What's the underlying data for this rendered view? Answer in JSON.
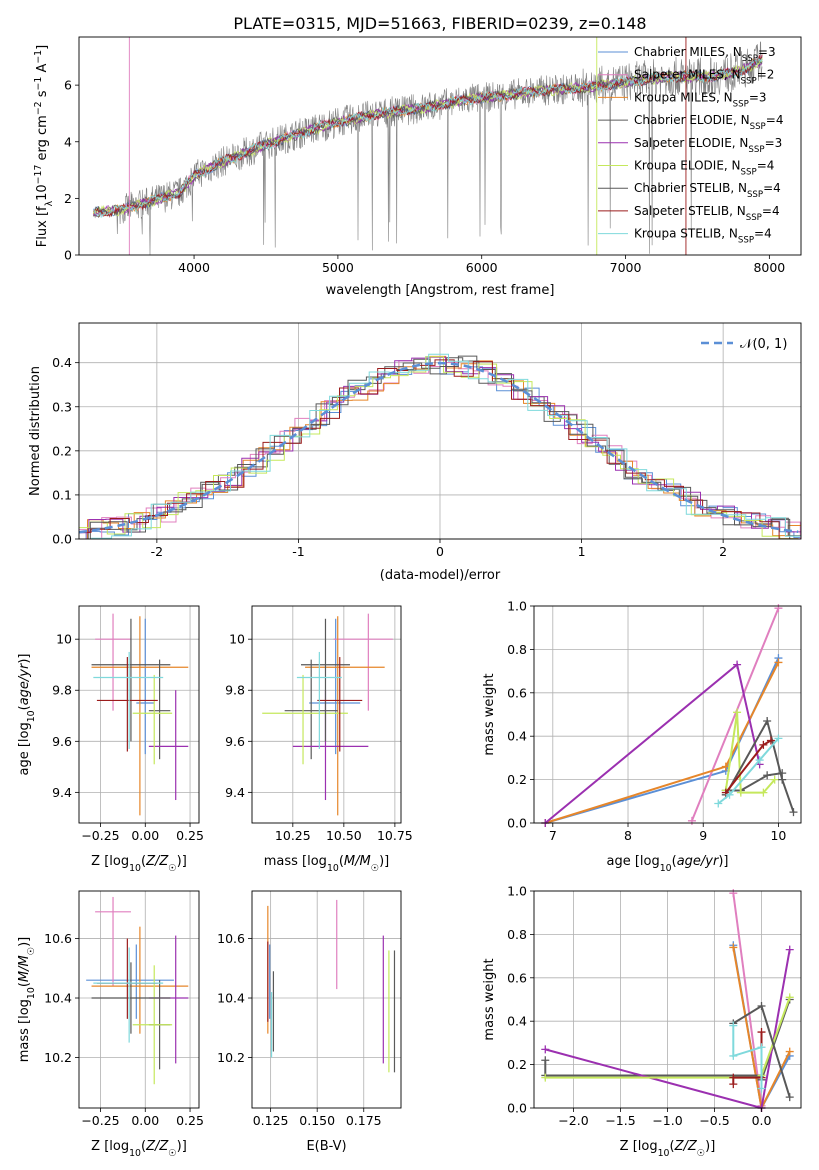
{
  "title": "PLATE=0315, MJD=51663, FIBERID=0239, z=0.148",
  "colors": {
    "Chabrier MILES": "#5b8fd6",
    "Salpeter MILES": "#e07fbf",
    "Kroupa MILES": "#e6862a",
    "Chabrier ELODIE": "#5a5a5a",
    "Salpeter ELODIE": "#9b30b0",
    "Kroupa ELODIE": "#c5e85c",
    "Chabrier STELIB": "#585858",
    "Salpeter STELIB": "#9b1c1c",
    "Kroupa STELIB": "#7fd9dc",
    "spectrum": "#808080",
    "grid": "#b0b0b0"
  },
  "chart_data": [
    {
      "id": "spectrum",
      "type": "line",
      "xlabel": "wavelength [Angstrom, rest frame]",
      "ylabel": "Flux [f_λ10^-17 erg cm^-2 s^-1 A^-1]",
      "xlim": [
        3200,
        8220
      ],
      "ylim": [
        0,
        7.7
      ],
      "xticks": [
        4000,
        5000,
        6000,
        7000,
        8000
      ],
      "yticks": [
        0,
        2,
        4,
        6
      ],
      "grid": false,
      "legend_placement": "top-right",
      "legend": [
        {
          "model": "Chabrier MILES",
          "nssp": "3"
        },
        {
          "model": "Salpeter MILES",
          "nssp": "2"
        },
        {
          "model": "Kroupa MILES",
          "nssp": "3"
        },
        {
          "model": "Chabrier ELODIE",
          "nssp": "4"
        },
        {
          "model": "Salpeter ELODIE",
          "nssp": "3"
        },
        {
          "model": "Kroupa ELODIE",
          "nssp": "4"
        },
        {
          "model": "Chabrier STELIB",
          "nssp": "4"
        },
        {
          "model": "Salpeter STELIB",
          "nssp": "4"
        },
        {
          "model": "Kroupa STELIB",
          "nssp": "4"
        }
      ],
      "continuum": {
        "x": [
          3300,
          3500,
          3700,
          3900,
          4000,
          4200,
          4500,
          4800,
          5000,
          5300,
          5600,
          5900,
          6100,
          6400,
          6700,
          7000,
          7300,
          7600,
          7800,
          7950
        ],
        "y": [
          1.5,
          1.6,
          1.9,
          2.2,
          2.8,
          3.3,
          3.9,
          4.4,
          4.7,
          5.0,
          5.2,
          5.5,
          5.6,
          5.8,
          5.9,
          6.1,
          6.3,
          6.3,
          6.5,
          6.9
        ]
      }
    },
    {
      "id": "residuals",
      "type": "line",
      "xlabel": "(data-model)/error",
      "ylabel": "Normed distribution",
      "xlim": [
        -2.55,
        2.55
      ],
      "ylim": [
        0,
        0.49
      ],
      "xticks": [
        -2,
        -1,
        0,
        1,
        2
      ],
      "yticks": [
        0.0,
        0.1,
        0.2,
        0.3,
        0.4
      ],
      "grid": true,
      "legend_placement": "top-right",
      "legend_label": "𝒩(0, 1)",
      "gaussian": {
        "mean": 0,
        "sigma": 1
      }
    },
    {
      "id": "age_vs_Z",
      "type": "scatter",
      "xlabel": "Z [log10(Z/Z☉)]",
      "ylabel": "age  [log10(age/yr)]",
      "xlim": [
        -0.37,
        0.3
      ],
      "ylim": [
        9.28,
        10.13
      ],
      "xticks": [
        -0.25,
        -0.1,
        0.05,
        0.1,
        0.15,
        0.2,
        0.25
      ],
      "xticklabels": [
        "−0.25",
        "0.00",
        "0.25"
      ],
      "xtickvals": [
        -0.25,
        0.0,
        0.25
      ],
      "yticks": [
        9.4,
        9.6,
        9.8,
        10.0
      ],
      "grid": true,
      "points": [
        {
          "model": "Chabrier MILES",
          "x": 0.0,
          "xerr": [
            0.05,
            0.05
          ],
          "y": 9.75,
          "yerr": [
            0.2,
            0.33
          ]
        },
        {
          "model": "Salpeter MILES",
          "x": -0.18,
          "xerr": [
            0.1,
            0.1
          ],
          "y": 10.0,
          "yerr": [
            0.28,
            0.1
          ]
        },
        {
          "model": "Kroupa MILES",
          "x": -0.03,
          "xerr": [
            0.27,
            0.27
          ],
          "y": 9.89,
          "yerr": [
            0.58,
            0.2
          ]
        },
        {
          "model": "Chabrier ELODIE",
          "x": 0.08,
          "xerr": [
            0.06,
            0.06
          ],
          "y": 9.72,
          "yerr": [
            0.19,
            0.2
          ]
        },
        {
          "model": "Salpeter ELODIE",
          "x": 0.17,
          "xerr": [
            0.15,
            0.07
          ],
          "y": 9.58,
          "yerr": [
            0.21,
            0.22
          ]
        },
        {
          "model": "Kroupa ELODIE",
          "x": 0.05,
          "xerr": [
            0.12,
            0.1
          ],
          "y": 9.71,
          "yerr": [
            0.2,
            0.15
          ]
        },
        {
          "model": "Chabrier STELIB",
          "x": -0.08,
          "xerr": [
            0.22,
            0.22
          ],
          "y": 9.9,
          "yerr": [
            0.3,
            0.18
          ]
        },
        {
          "model": "Salpeter STELIB",
          "x": -0.1,
          "xerr": [
            0.17,
            0.17
          ],
          "y": 9.76,
          "yerr": [
            0.2,
            0.17
          ]
        },
        {
          "model": "Kroupa STELIB",
          "x": -0.09,
          "xerr": [
            0.2,
            0.19
          ],
          "y": 9.85,
          "yerr": [
            0.28,
            0.1
          ]
        }
      ]
    },
    {
      "id": "age_vs_mass",
      "type": "scatter",
      "xlabel": "mass [log10(M/M☉)]",
      "ylabel": "",
      "xlim": [
        10.05,
        10.78
      ],
      "ylim": [
        9.28,
        10.13
      ],
      "xtickvals": [
        10.25,
        10.5,
        10.75
      ],
      "xticklabels": [
        "10.25",
        "10.50",
        "10.75"
      ],
      "yticks": [
        9.4,
        9.6,
        9.8,
        10.0
      ],
      "grid": true,
      "points": [
        {
          "model": "Chabrier MILES",
          "x": 10.46,
          "xerr": [
            0.13,
            0.12
          ],
          "y": 9.75,
          "yerr": [
            0.2,
            0.33
          ]
        },
        {
          "model": "Salpeter MILES",
          "x": 10.62,
          "xerr": [
            0.17,
            0.12
          ],
          "y": 10.0,
          "yerr": [
            0.28,
            0.1
          ]
        },
        {
          "model": "Kroupa MILES",
          "x": 10.47,
          "xerr": [
            0.16,
            0.23
          ],
          "y": 9.89,
          "yerr": [
            0.58,
            0.2
          ]
        },
        {
          "model": "Chabrier ELODIE",
          "x": 10.34,
          "xerr": [
            0.13,
            0.13
          ],
          "y": 9.72,
          "yerr": [
            0.19,
            0.2
          ]
        },
        {
          "model": "Salpeter ELODIE",
          "x": 10.41,
          "xerr": [
            0.16,
            0.21
          ],
          "y": 9.58,
          "yerr": [
            0.21,
            0.22
          ]
        },
        {
          "model": "Kroupa ELODIE",
          "x": 10.3,
          "xerr": [
            0.2,
            0.22
          ],
          "y": 9.71,
          "yerr": [
            0.2,
            0.15
          ]
        },
        {
          "model": "Chabrier STELIB",
          "x": 10.41,
          "xerr": [
            0.12,
            0.12
          ],
          "y": 9.9,
          "yerr": [
            0.3,
            0.18
          ]
        },
        {
          "model": "Salpeter STELIB",
          "x": 10.48,
          "xerr": [
            0.11,
            0.11
          ],
          "y": 9.76,
          "yerr": [
            0.2,
            0.17
          ]
        },
        {
          "model": "Kroupa STELIB",
          "x": 10.38,
          "xerr": [
            0.11,
            0.11
          ],
          "y": 9.85,
          "yerr": [
            0.28,
            0.1
          ]
        }
      ]
    },
    {
      "id": "weight_vs_age",
      "type": "line",
      "xlabel": "age  [log10(age/yr)]",
      "ylabel": "mass weight",
      "xlim": [
        6.75,
        10.3
      ],
      "ylim": [
        0,
        1.0
      ],
      "xtickvals": [
        7,
        8,
        9,
        10
      ],
      "xticklabels": [
        "7",
        "8",
        "9",
        "10"
      ],
      "yticks": [
        0.0,
        0.2,
        0.4,
        0.6,
        0.8,
        1.0
      ],
      "grid": true,
      "series": [
        {
          "model": "Chabrier MILES",
          "x": [
            6.9,
            9.3,
            10.0
          ],
          "y": [
            0.0,
            0.24,
            0.76
          ]
        },
        {
          "model": "Salpeter MILES",
          "x": [
            8.85,
            10.0
          ],
          "y": [
            0.01,
            0.99
          ]
        },
        {
          "model": "Kroupa MILES",
          "x": [
            6.9,
            9.3,
            10.0
          ],
          "y": [
            0.0,
            0.26,
            0.74
          ]
        },
        {
          "model": "Chabrier ELODIE",
          "x": [
            9.3,
            9.5,
            9.85,
            10.05
          ],
          "y": [
            0.15,
            0.15,
            0.22,
            0.23
          ]
        },
        {
          "model": "Salpeter ELODIE",
          "x": [
            6.9,
            9.45,
            9.75
          ],
          "y": [
            0.0,
            0.73,
            0.27
          ]
        },
        {
          "model": "Kroupa ELODIE",
          "x": [
            9.3,
            9.45,
            9.5,
            9.8,
            9.95
          ],
          "y": [
            0.15,
            0.51,
            0.14,
            0.14,
            0.2
          ]
        },
        {
          "model": "Chabrier STELIB",
          "x": [
            9.3,
            9.85,
            10.05,
            10.2
          ],
          "y": [
            0.13,
            0.47,
            0.2,
            0.05
          ]
        },
        {
          "model": "Salpeter STELIB",
          "x": [
            9.3,
            9.8,
            9.9
          ],
          "y": [
            0.14,
            0.36,
            0.38
          ]
        },
        {
          "model": "Kroupa STELIB",
          "x": [
            9.2,
            9.35,
            9.75,
            10.0
          ],
          "y": [
            0.09,
            0.13,
            0.29,
            0.39
          ]
        }
      ]
    },
    {
      "id": "mass_vs_Z",
      "type": "scatter",
      "xlabel": "Z [log10(Z/Z☉)]",
      "ylabel": "mass [log10(M/M☉)]",
      "xlim": [
        -0.37,
        0.3
      ],
      "ylim": [
        10.03,
        10.76
      ],
      "xtickvals": [
        -0.25,
        0.0,
        0.25
      ],
      "xticklabels": [
        "−0.25",
        "0.00",
        "0.25"
      ],
      "yticks": [
        10.2,
        10.4,
        10.6
      ],
      "grid": true,
      "points": [
        {
          "model": "Chabrier MILES",
          "x": -0.05,
          "xerr": [
            0.28,
            0.21
          ],
          "y": 10.46,
          "yerr": [
            0.13,
            0.12
          ]
        },
        {
          "model": "Salpeter MILES",
          "x": -0.18,
          "xerr": [
            0.1,
            0.1
          ],
          "y": 10.69,
          "yerr": [
            0.25,
            0.05
          ]
        },
        {
          "model": "Kroupa MILES",
          "x": -0.03,
          "xerr": [
            0.27,
            0.27
          ],
          "y": 10.44,
          "yerr": [
            0.16,
            0.2
          ]
        },
        {
          "model": "Chabrier ELODIE",
          "x": 0.08,
          "xerr": [
            0.06,
            0.06
          ],
          "y": 10.31,
          "yerr": [
            0.15,
            0.15
          ]
        },
        {
          "model": "Salpeter ELODIE",
          "x": 0.17,
          "xerr": [
            0.15,
            0.07
          ],
          "y": 10.4,
          "yerr": [
            0.22,
            0.21
          ]
        },
        {
          "model": "Kroupa ELODIE",
          "x": 0.05,
          "xerr": [
            0.12,
            0.1
          ],
          "y": 10.31,
          "yerr": [
            0.2,
            0.2
          ]
        },
        {
          "model": "Chabrier STELIB",
          "x": -0.08,
          "xerr": [
            0.22,
            0.22
          ],
          "y": 10.4,
          "yerr": [
            0.12,
            0.12
          ]
        },
        {
          "model": "Salpeter STELIB",
          "x": -0.1,
          "xerr": [
            0.17,
            0.17
          ],
          "y": 10.45,
          "yerr": [
            0.12,
            0.15
          ]
        },
        {
          "model": "Kroupa STELIB",
          "x": -0.09,
          "xerr": [
            0.2,
            0.19
          ],
          "y": 10.45,
          "yerr": [
            0.2,
            0.12
          ]
        }
      ]
    },
    {
      "id": "mass_vs_EBV",
      "type": "scatter",
      "xlabel": "E(B-V)",
      "ylabel": "",
      "xlim": [
        0.115,
        0.195
      ],
      "ylim": [
        10.03,
        10.76
      ],
      "xtickvals": [
        0.125,
        0.15,
        0.175
      ],
      "xticklabels": [
        "0.125",
        "0.150",
        "0.175"
      ],
      "yticks": [
        10.2,
        10.4,
        10.6
      ],
      "grid": true,
      "points": [
        {
          "model": "Chabrier MILES",
          "x": 0.1245,
          "y": 10.46,
          "yerr": [
            0.13,
            0.12
          ]
        },
        {
          "model": "Salpeter MILES",
          "x": 0.1605,
          "y": 10.6,
          "yerr": [
            0.17,
            0.13
          ]
        },
        {
          "model": "Kroupa MILES",
          "x": 0.1235,
          "y": 10.44,
          "yerr": [
            0.16,
            0.27
          ]
        },
        {
          "model": "Chabrier ELODIE",
          "x": 0.1915,
          "y": 10.35,
          "yerr": [
            0.2,
            0.21
          ]
        },
        {
          "model": "Salpeter ELODIE",
          "x": 0.1855,
          "y": 10.4,
          "yerr": [
            0.22,
            0.21
          ]
        },
        {
          "model": "Kroupa ELODIE",
          "x": 0.1885,
          "y": 10.35,
          "yerr": [
            0.2,
            0.21
          ]
        },
        {
          "model": "Chabrier STELIB",
          "x": 0.1265,
          "y": 10.36,
          "yerr": [
            0.14,
            0.13
          ]
        },
        {
          "model": "Salpeter STELIB",
          "x": 0.1235,
          "y": 10.44,
          "yerr": [
            0.12,
            0.15
          ]
        },
        {
          "model": "Kroupa STELIB",
          "x": 0.1255,
          "y": 10.3,
          "yerr": [
            0.1,
            0.12
          ]
        }
      ]
    },
    {
      "id": "weight_vs_Z",
      "type": "line",
      "xlabel": "Z [log10(Z/Z☉)]",
      "ylabel": "mass weight",
      "xlim": [
        -2.42,
        0.42
      ],
      "ylim": [
        0,
        1.0
      ],
      "xtickvals": [
        -2.0,
        -1.5,
        -1.0,
        -0.5,
        0.0
      ],
      "xticklabels": [
        "−2.0",
        "−1.5",
        "−1.0",
        "−0.5",
        "0.0"
      ],
      "yticks": [
        0.0,
        0.2,
        0.4,
        0.6,
        0.8,
        1.0
      ],
      "grid": true,
      "series": [
        {
          "model": "Chabrier MILES",
          "x": [
            -0.3,
            0.0,
            0.3
          ],
          "y": [
            0.75,
            0.0,
            0.24
          ]
        },
        {
          "model": "Salpeter MILES",
          "x": [
            -0.3,
            0.0
          ],
          "y": [
            0.99,
            0.01
          ]
        },
        {
          "model": "Kroupa MILES",
          "x": [
            -0.3,
            0.0,
            0.3
          ],
          "y": [
            0.74,
            0.0,
            0.26
          ]
        },
        {
          "model": "Chabrier ELODIE",
          "x": [
            -2.3,
            -2.3,
            0.0,
            0.0,
            0.3
          ],
          "y": [
            0.22,
            0.15,
            0.15,
            0.13,
            0.5
          ]
        },
        {
          "model": "Salpeter ELODIE",
          "x": [
            -2.3,
            0.0,
            0.3
          ],
          "y": [
            0.27,
            0.0,
            0.73
          ]
        },
        {
          "model": "Kroupa ELODIE",
          "x": [
            -2.3,
            0.0,
            0.0,
            0.3
          ],
          "y": [
            0.14,
            0.14,
            0.15,
            0.51
          ]
        },
        {
          "model": "Chabrier STELIB",
          "x": [
            -0.3,
            0.0,
            0.3
          ],
          "y": [
            0.39,
            0.47,
            0.05
          ]
        },
        {
          "model": "Salpeter STELIB",
          "x": [
            -0.3,
            -0.3,
            0.0,
            0.0
          ],
          "y": [
            0.11,
            0.14,
            0.14,
            0.35
          ]
        },
        {
          "model": "Kroupa STELIB",
          "x": [
            -0.3,
            -0.3,
            0.0,
            0.0
          ],
          "y": [
            0.38,
            0.24,
            0.28,
            0.09
          ]
        }
      ]
    }
  ]
}
